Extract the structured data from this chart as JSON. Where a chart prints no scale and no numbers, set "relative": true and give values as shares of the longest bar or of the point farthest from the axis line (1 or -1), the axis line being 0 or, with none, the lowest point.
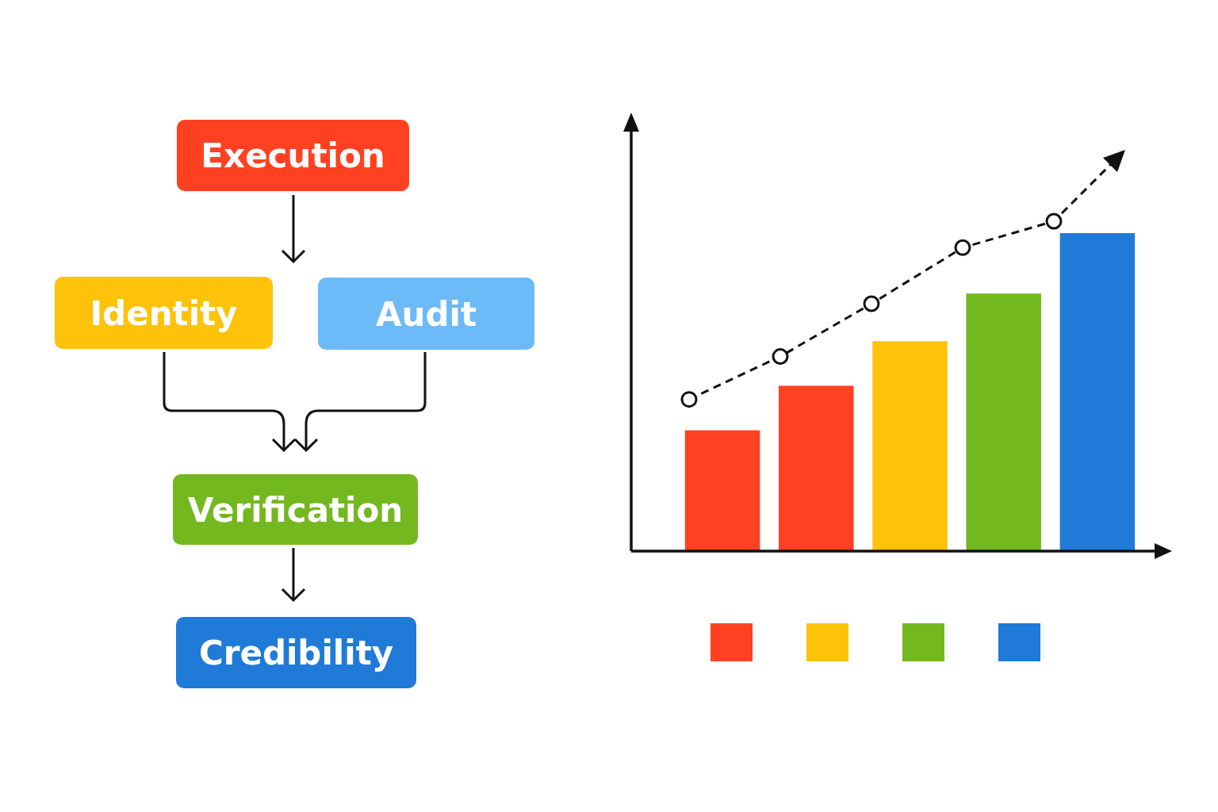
{
  "chart_data": [
    {
      "type": "other",
      "categories": [
        "Execution",
        "Identity",
        "Audit",
        "Verification",
        "Credibility"
      ],
      "colors": [
        "#ff4122",
        "#fdc20a",
        "#6cbaf7",
        "#74b81f",
        "#1f7ad8"
      ]
    },
    {
      "type": "bar",
      "relative": true,
      "categories": [
        null,
        null,
        null,
        null,
        null
      ],
      "colors": [
        "#ff4122",
        "#ff4122",
        "#fdc20a",
        "#74b81f",
        "#1f7ad8"
      ],
      "values": [
        0.38,
        0.52,
        0.66,
        0.81,
        1
      ]
    },
    {
      "type": "line",
      "relative": true,
      "categories": [
        null,
        null,
        null,
        null,
        null
      ],
      "color": "#111111",
      "marker": "circle",
      "line_style": "dashed",
      "values": [
        0.46,
        0.59,
        0.75,
        0.92,
        1
      ]
    }
  ]
}
